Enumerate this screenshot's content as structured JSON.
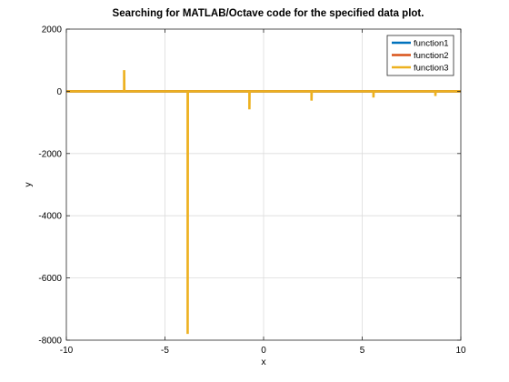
{
  "chart_data": {
    "type": "line",
    "title": "Searching for MATLAB/Octave code for the specified data plot.",
    "xlabel": "x",
    "ylabel": "y",
    "xlim": [
      -10,
      10
    ],
    "ylim": [
      -8000,
      2000
    ],
    "xticks": [
      -10,
      -5,
      0,
      5,
      10
    ],
    "yticks": [
      -8000,
      -6000,
      -4000,
      -2000,
      0,
      2000
    ],
    "grid": true,
    "legend_position": "top-right",
    "series": [
      {
        "name": "function1",
        "color": "#0072bd",
        "x": [
          -10,
          10
        ],
        "y": [
          0,
          0
        ]
      },
      {
        "name": "function2",
        "color": "#d95319",
        "x": [
          -10,
          10
        ],
        "y": [
          0,
          0
        ]
      },
      {
        "name": "function3",
        "color": "#edb120",
        "x": [
          -10,
          -7.07,
          -7.07,
          -7.06,
          -3.85,
          -3.85,
          -3.84,
          -0.72,
          -0.72,
          -0.71,
          2.43,
          2.43,
          2.44,
          5.57,
          5.57,
          5.58,
          8.71,
          8.71,
          8.72,
          10
        ],
        "y": [
          0,
          0,
          680,
          0,
          0,
          -7800,
          0,
          0,
          -580,
          0,
          0,
          -300,
          0,
          0,
          -200,
          0,
          0,
          -150,
          0,
          0
        ]
      }
    ]
  }
}
